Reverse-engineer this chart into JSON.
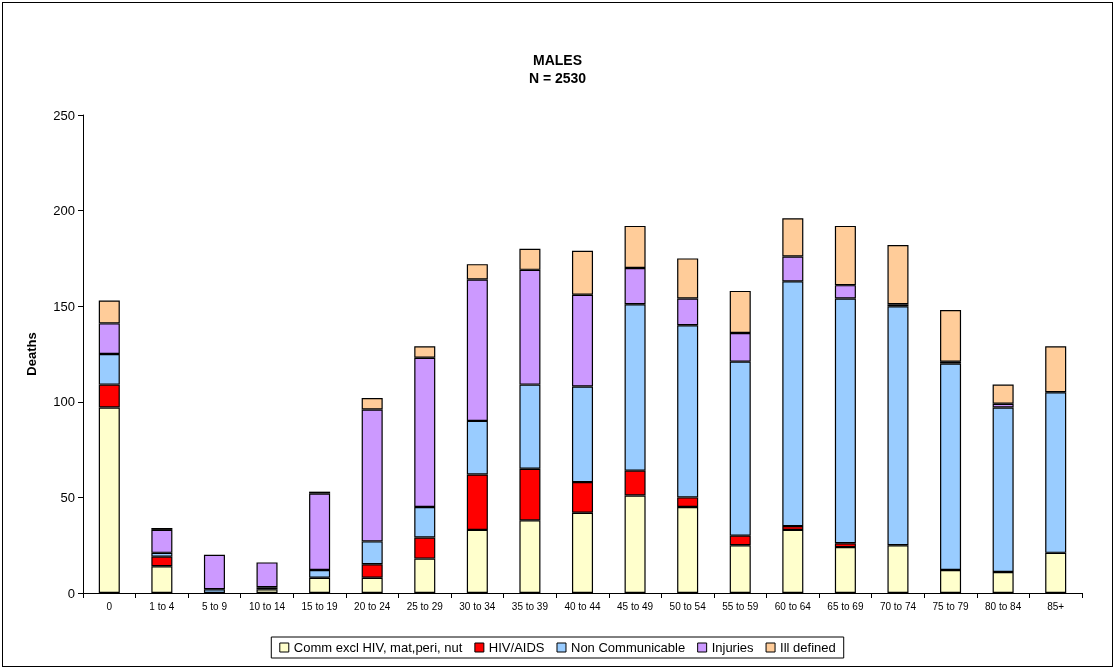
{
  "chart_data": {
    "type": "bar",
    "title": "MALES",
    "subtitle": "N = 2530",
    "ylabel": "Deaths",
    "categories": [
      "0",
      "1 to 4",
      "5 to 9",
      "10 to 14",
      "15 to 19",
      "20 to 24",
      "25 to 29",
      "30 to 34",
      "35 to 39",
      "40 to 44",
      "45 to 49",
      "50 to 54",
      "55 to 59",
      "60 to 64",
      "65 to 69",
      "70 to 74",
      "75 to 79",
      "80 to 84",
      "85+"
    ],
    "stacked": true,
    "series": [
      {
        "name": "Comm excl HIV, mat,peri, nut",
        "color": "#ffffcc",
        "values": [
          97,
          14,
          null,
          2,
          8,
          8,
          18,
          33,
          38,
          42,
          51,
          45,
          25,
          33,
          24,
          25,
          12,
          11,
          21
        ]
      },
      {
        "name": "HIV/AIDS",
        "color": "#ff0000",
        "values": [
          12,
          5,
          0,
          0,
          0,
          7,
          11,
          29,
          27,
          16,
          13,
          5,
          5,
          2,
          2,
          0,
          0,
          0,
          0
        ]
      },
      {
        "name": "Non Communicable",
        "color": "#99ccff",
        "values": [
          16,
          2,
          2,
          1,
          4,
          12,
          16,
          28,
          44,
          50,
          87,
          90,
          91,
          128,
          128,
          125,
          108,
          86,
          84
        ]
      },
      {
        "name": "Injuries",
        "color": "#cc99ff",
        "values": [
          16,
          12,
          18,
          13,
          40,
          69,
          78,
          74,
          60,
          48,
          19,
          14,
          15,
          13,
          7,
          1,
          1,
          2,
          0
        ]
      },
      {
        "name": "Ill defined",
        "color": "#ffcc99",
        "values": [
          12,
          1,
          0,
          0,
          1,
          6,
          6,
          8,
          11,
          23,
          22,
          21,
          22,
          20,
          31,
          31,
          27,
          10,
          24
        ]
      }
    ],
    "ylim": [
      0,
      250
    ],
    "yticks": [
      0,
      50,
      100,
      150,
      200,
      250
    ],
    "grid": false,
    "legend": "bottom"
  }
}
